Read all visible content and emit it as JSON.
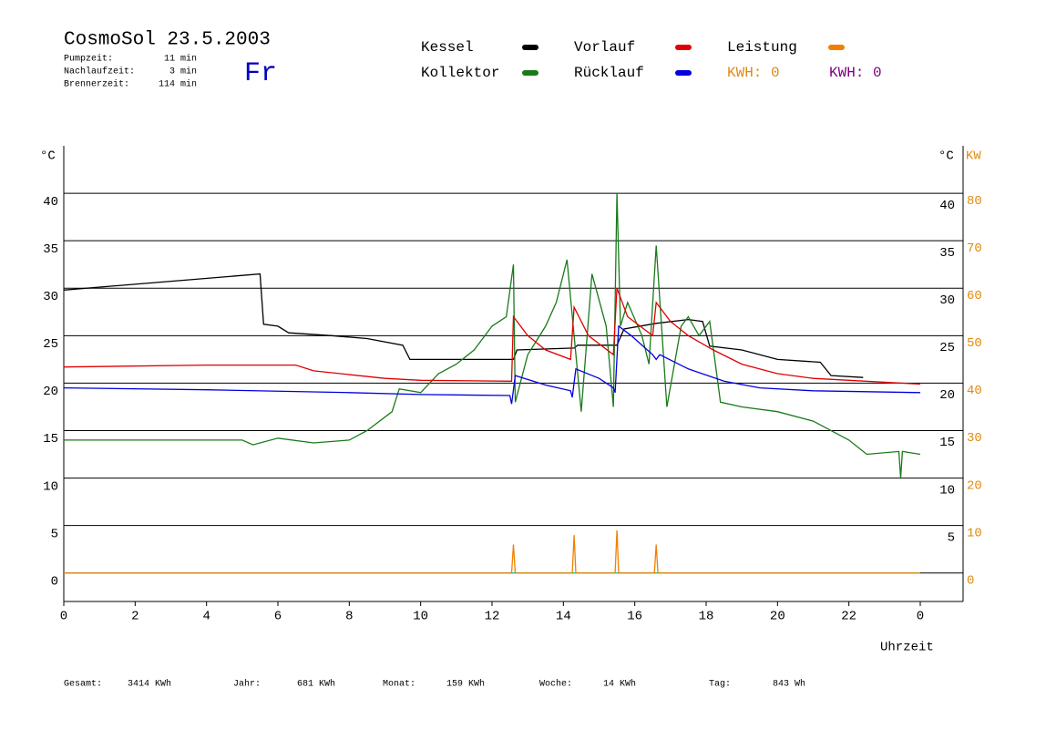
{
  "chart_data": {
    "type": "line",
    "title": "CosmoSol 23.5.2003",
    "info": [
      {
        "label": "Pumpzeit:",
        "value": "11 min"
      },
      {
        "label": "Nachlaufzeit:",
        "value": "3 min"
      },
      {
        "label": "Brennerzeit:",
        "value": "114 min"
      }
    ],
    "day": "Fr",
    "kwh_labels": [
      {
        "text": "KWH: 0",
        "color": "#e08a10"
      },
      {
        "text": "KWH: 0",
        "color": "#800080"
      }
    ],
    "y_unit": "°C",
    "y2_unit": "KW",
    "xlabel": "Uhrzeit",
    "xlim": [
      0,
      25.2
    ],
    "ylim": [
      -3,
      45
    ],
    "y2lim": [
      -6,
      90
    ],
    "xticks": [
      0,
      2,
      4,
      6,
      8,
      10,
      12,
      14,
      16,
      18,
      20,
      22,
      {
        "value": 24,
        "label": "0"
      }
    ],
    "yticks": [
      0,
      5,
      10,
      15,
      20,
      25,
      30,
      35,
      40
    ],
    "y2ticks": [
      0,
      10,
      20,
      30,
      40,
      50,
      60,
      70,
      80
    ],
    "grid": true,
    "series": [
      {
        "name": "Kessel",
        "color": "#000000",
        "x": [
          0,
          5.5,
          5.6,
          6,
          6.3,
          7.5,
          8.5,
          9.5,
          9.7,
          12.6,
          12.7,
          14.3,
          14.4,
          15.5,
          15.7,
          16.6,
          17.5,
          17.9,
          18.1,
          19,
          20,
          21.2,
          21.5,
          22.4
        ],
        "values": [
          29.8,
          31.5,
          26.2,
          26,
          25.3,
          25,
          24.7,
          24,
          22.5,
          22.5,
          23.5,
          23.7,
          24,
          24,
          25.7,
          26.3,
          26.7,
          26.5,
          23.9,
          23.5,
          22.5,
          22.2,
          20.8,
          20.6
        ]
      },
      {
        "name": "Kollektor",
        "color": "#1a7a1a",
        "x": [
          0,
          5,
          5.3,
          6,
          7,
          8,
          8.5,
          9.2,
          9.4,
          10,
          10.5,
          11,
          11.5,
          12,
          12.4,
          12.6,
          12.65,
          13,
          13.5,
          13.8,
          14.1,
          14.5,
          14.8,
          15.2,
          15.4,
          15.5,
          15.6,
          15.8,
          16.2,
          16.4,
          16.6,
          16.9,
          17.3,
          17.5,
          17.8,
          18.1,
          18.4,
          19,
          20,
          21,
          22,
          22.5,
          23.4,
          23.45,
          23.5,
          24
        ],
        "values": [
          14,
          14,
          13.5,
          14.2,
          13.7,
          14,
          15,
          17,
          19.4,
          19,
          21,
          22,
          23.5,
          26,
          27,
          32.5,
          18,
          23,
          26,
          28.5,
          33,
          17,
          31.5,
          26,
          17.5,
          40,
          26,
          28.5,
          25,
          22,
          34.5,
          17.5,
          26,
          27,
          25,
          26.5,
          18,
          17.5,
          17,
          16,
          14,
          12.5,
          12.8,
          10,
          12.8,
          12.5
        ]
      },
      {
        "name": "Vorlauf",
        "color": "#e00000",
        "x": [
          0,
          4,
          6.5,
          7,
          9,
          10,
          12.55,
          12.6,
          13,
          13.5,
          14.2,
          14.3,
          14.7,
          15.4,
          15.5,
          15.8,
          16.5,
          16.6,
          17,
          17.5,
          18.2,
          19,
          20,
          21,
          22,
          24
        ],
        "values": [
          21.7,
          21.9,
          21.9,
          21.3,
          20.5,
          20.3,
          20.2,
          27,
          25,
          23.5,
          22.5,
          28,
          25,
          23,
          30,
          27,
          25,
          28.5,
          26.5,
          25,
          23.5,
          22,
          21,
          20.5,
          20.3,
          19.9
        ]
      },
      {
        "name": "Rücklauf",
        "color": "#0000e0",
        "x": [
          0,
          4,
          8,
          10,
          12.5,
          12.55,
          12.65,
          13.5,
          14.2,
          14.25,
          14.35,
          15,
          15.4,
          15.45,
          15.55,
          15.9,
          16.5,
          16.6,
          16.7,
          17.5,
          18.5,
          19.5,
          21,
          24
        ],
        "values": [
          19.5,
          19.3,
          19,
          18.8,
          18.7,
          17.8,
          20.8,
          19.8,
          19.2,
          18.5,
          21.5,
          20.5,
          19.5,
          19,
          26,
          25,
          23,
          22.5,
          23,
          21.5,
          20.2,
          19.5,
          19.2,
          19
        ]
      },
      {
        "name": "Leistung",
        "color": "#f08000",
        "axis": "y2",
        "x": [
          0,
          12.55,
          12.6,
          12.65,
          14.25,
          14.3,
          14.35,
          15.45,
          15.5,
          15.55,
          16.55,
          16.6,
          16.65,
          24
        ],
        "values": [
          0,
          0,
          6,
          0,
          0,
          8,
          0,
          0,
          9,
          0,
          0,
          6,
          0,
          0
        ]
      }
    ],
    "footer": [
      {
        "label": "Gesamt:",
        "value": "3414 KWh"
      },
      {
        "label": "Jahr:",
        "value": "681 KWh"
      },
      {
        "label": "Monat:",
        "value": "159 KWh"
      },
      {
        "label": "Woche:",
        "value": "14 KWh"
      },
      {
        "label": "Tag:",
        "value": "843 Wh"
      }
    ]
  }
}
